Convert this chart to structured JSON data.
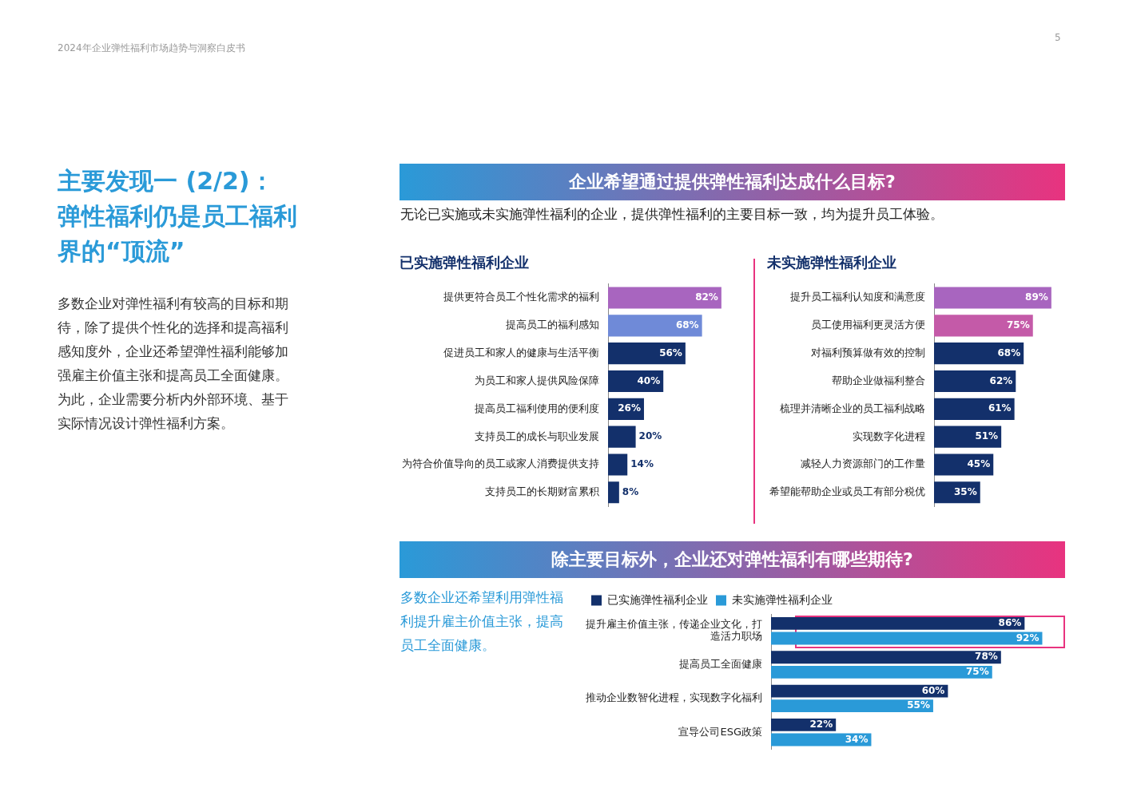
{
  "chart_data": [
    {
      "type": "other",
      "title": "主要发现一 (2/2)：弹性福利仍是员工福利界的“顶流”",
      "subtitle": "2024年企业弹性福利市场趋势与洞察白皮书",
      "annotations": [
        "5",
        "多数企业对弹性福利有较高的目标和期待，除了提供个性化的选择和提高福利感知度外，企业还希望弹性福利能够加强雇主价值主张和提高员工全面健康。为此，企业需要分析内外部环境、基于实际情况设计弹性福利方案。",
        "企业希望通过提供弹性福利达成什么目标?",
        "无论已实施或未实施弹性福利的企业，提供弹性福利的主要目标一致，均为提升员工体验。",
        "除主要目标外，企业还对弹性福利有哪些期待?",
        "多数企业还希望利用弹性福利提升雇主价值主张，提高员工全面健康。"
      ]
    },
    {
      "type": "bar",
      "orientation": "horizontal",
      "title": "已实施弹性福利企业",
      "categories": [
        "提供更符合员工个性化需求的福利",
        "提高员工的福利感知",
        "促进员工和家人的健康与生活平衡",
        "为员工和家人提供风险保障",
        "提高员工福利使用的便利度",
        "支持员工的成长与职业发展",
        "为符合价值导向的员工或家人消费提供支持",
        "支持员工的长期财富累积"
      ],
      "values": [
        82,
        68,
        56,
        40,
        26,
        20,
        14,
        8
      ],
      "value_labels": [
        "82%",
        "68%",
        "56%",
        "40%",
        "26%",
        "20%",
        "14%",
        "8%"
      ],
      "colors": [
        "#a865bf",
        "#6f8ad8",
        "#13306b",
        "#13306b",
        "#13306b",
        "#13306b",
        "#13306b",
        "#13306b"
      ]
    },
    {
      "type": "bar",
      "orientation": "horizontal",
      "title": "未实施弹性福利企业",
      "categories": [
        "提升员工福利认知度和满意度",
        "员工使用福利更灵活方便",
        "对福利预算做有效的控制",
        "帮助企业做福利整合",
        "梳理并清晰企业的员工福利战略",
        "实现数字化进程",
        "减轻人力资源部门的工作量",
        "希望能帮助企业或员工有部分税优"
      ],
      "values": [
        89,
        75,
        68,
        62,
        61,
        51,
        45,
        35
      ],
      "value_labels": [
        "89%",
        "75%",
        "68%",
        "62%",
        "61%",
        "51%",
        "45%",
        "35%"
      ],
      "colors": [
        "#a865bf",
        "#c45aa8",
        "#13306b",
        "#13306b",
        "#13306b",
        "#13306b",
        "#13306b",
        "#13306b"
      ]
    },
    {
      "type": "bar",
      "orientation": "horizontal",
      "legend": "top left",
      "categories": [
        "提升雇主价值主张，传递企业文化，打造活力职场",
        "提高员工全面健康",
        "推动企业数智化进程，实现数字化福利",
        "宣导公司ESG政策"
      ],
      "series": [
        {
          "name": "已实施弹性福利企业",
          "color": "#13306b",
          "values": [
            86,
            78,
            60,
            22
          ],
          "value_labels": [
            "86%",
            "78%",
            "60%",
            "22%"
          ]
        },
        {
          "name": "未实施弹性福利企业",
          "color": "#2a9ad8",
          "values": [
            92,
            75,
            55,
            34
          ],
          "value_labels": [
            "92%",
            "75%",
            "55%",
            "34%"
          ]
        }
      ]
    }
  ]
}
